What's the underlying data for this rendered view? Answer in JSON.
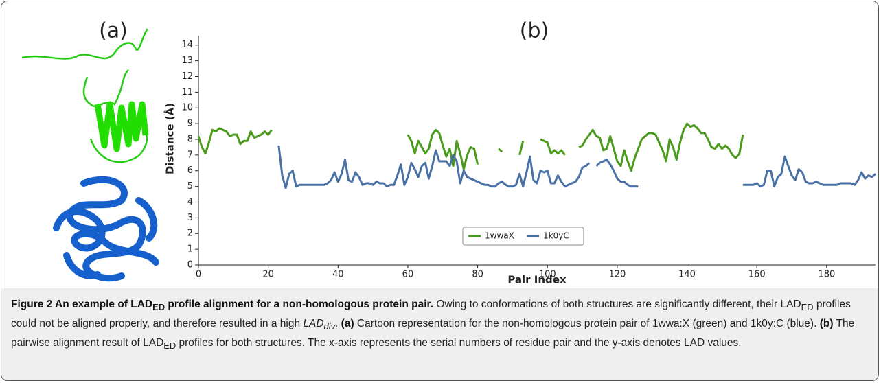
{
  "panel_labels": [
    "(a)",
    "(b)"
  ],
  "chart_data": {
    "type": "line",
    "xlabel": "Pair Index",
    "ylabel": "Distance (Å)",
    "x": [
      0,
      1,
      2,
      3,
      4,
      5,
      6,
      7,
      8,
      9,
      10,
      11,
      12,
      13,
      14,
      15,
      16,
      17,
      18,
      19,
      20,
      21,
      22,
      23,
      24,
      25,
      26,
      27,
      28,
      29,
      30,
      31,
      32,
      33,
      34,
      35,
      36,
      37,
      38,
      39,
      40,
      41,
      42,
      43,
      44,
      45,
      46,
      47,
      48,
      49,
      50,
      51,
      52,
      53,
      54,
      55,
      56,
      57,
      58,
      59,
      60,
      61,
      62,
      63,
      64,
      65,
      66,
      67,
      68,
      69,
      70,
      71,
      72,
      73,
      74,
      75,
      76,
      77,
      78,
      79,
      80,
      81,
      82,
      83,
      84,
      85,
      86,
      87,
      88,
      89,
      90,
      91,
      92,
      93,
      94,
      95,
      96,
      97,
      98,
      99,
      100,
      101,
      102,
      103,
      104,
      105,
      106,
      107,
      108,
      109,
      110,
      111,
      112,
      113,
      114,
      115,
      116,
      117,
      118,
      119,
      120,
      121,
      122,
      123,
      124,
      125,
      126,
      127,
      128,
      129,
      130,
      131,
      132,
      133,
      134,
      135,
      136,
      137,
      138,
      139,
      140,
      141,
      142,
      143,
      144,
      145,
      146,
      147,
      148,
      149,
      150,
      151,
      152,
      153,
      154,
      155,
      156,
      157,
      158,
      159,
      160,
      161,
      162,
      163,
      164,
      165,
      166,
      167,
      168,
      169,
      170,
      171,
      172,
      173,
      174,
      175,
      176,
      177,
      178,
      179,
      180,
      181,
      182,
      183,
      184,
      185,
      186,
      187,
      188,
      189,
      190,
      191,
      192,
      193,
      194
    ],
    "series": [
      {
        "name": "1wwaX",
        "color": "#4a9a1c",
        "values": [
          8.2,
          7.5,
          7.1,
          7.8,
          8.6,
          8.5,
          8.7,
          8.6,
          8.5,
          8.2,
          8.3,
          8.3,
          7.7,
          7.9,
          7.9,
          8.5,
          8.1,
          8.2,
          8.3,
          8.5,
          8.3,
          8.6,
          null,
          null,
          null,
          null,
          null,
          null,
          null,
          null,
          null,
          null,
          null,
          null,
          null,
          null,
          null,
          null,
          null,
          null,
          null,
          null,
          null,
          null,
          null,
          null,
          null,
          null,
          null,
          null,
          null,
          null,
          null,
          null,
          null,
          null,
          null,
          null,
          null,
          null,
          8.3,
          7.9,
          7.1,
          7.9,
          7.5,
          7.1,
          7.4,
          8.3,
          8.6,
          8.4,
          7.6,
          6.9,
          7.4,
          6.3,
          7.9,
          7.1,
          6.1,
          7.0,
          7.5,
          7.4,
          6.4,
          null,
          null,
          null,
          null,
          null,
          7.4,
          7.2,
          null,
          null,
          null,
          null,
          7.0,
          7.9,
          null,
          null,
          null,
          null,
          8.0,
          7.9,
          7.8,
          7.1,
          7.3,
          7.1,
          7.3,
          7.0,
          null,
          null,
          null,
          7.5,
          7.6,
          8.0,
          8.3,
          8.6,
          8.2,
          8.1,
          7.3,
          7.4,
          8.2,
          7.4,
          6.6,
          6.3,
          7.3,
          6.6,
          6.0,
          6.8,
          7.4,
          8.0,
          8.2,
          8.4,
          8.4,
          8.3,
          7.8,
          7.3,
          6.6,
          8.0,
          7.5,
          6.7,
          7.8,
          8.6,
          9.0,
          8.8,
          8.9,
          8.7,
          8.4,
          8.4,
          8.0,
          7.5,
          7.4,
          7.7,
          7.4,
          7.6,
          7.4,
          7.0,
          6.8,
          7.1,
          8.3,
          null,
          null,
          null,
          null,
          null,
          null,
          null,
          null,
          null,
          null,
          null,
          null,
          null,
          null,
          null,
          null,
          null,
          null,
          null,
          null,
          null,
          null,
          null,
          null,
          null,
          null,
          null,
          null,
          null,
          null,
          null,
          null,
          null,
          null,
          null,
          null,
          null,
          null
        ]
      },
      {
        "name": "1k0yC",
        "color": "#4a71a5",
        "values": [
          null,
          null,
          null,
          null,
          null,
          null,
          null,
          null,
          null,
          null,
          null,
          null,
          null,
          null,
          null,
          null,
          null,
          null,
          null,
          null,
          null,
          null,
          null,
          7.6,
          5.7,
          4.9,
          5.8,
          6.0,
          5.0,
          5.1,
          5.1,
          5.1,
          5.1,
          5.1,
          5.1,
          5.1,
          5.1,
          5.2,
          5.4,
          5.9,
          5.3,
          5.8,
          6.7,
          5.4,
          5.3,
          5.9,
          5.6,
          5.1,
          5.2,
          5.2,
          5.1,
          5.3,
          5.2,
          5.2,
          5.0,
          5.1,
          5.1,
          5.7,
          6.4,
          5.1,
          5.6,
          6.5,
          6.1,
          5.6,
          6.3,
          6.5,
          5.5,
          6.3,
          7.3,
          6.6,
          6.6,
          6.6,
          6.3,
          7.0,
          6.6,
          5.2,
          6.0,
          5.6,
          5.5,
          5.4,
          5.3,
          5.2,
          5.1,
          5.1,
          5.0,
          5.0,
          5.2,
          5.3,
          5.1,
          5.0,
          5.0,
          5.1,
          5.8,
          5.0,
          5.9,
          6.9,
          5.4,
          5.2,
          6.0,
          5.9,
          6.0,
          5.2,
          5.2,
          5.7,
          5.3,
          5.0,
          5.1,
          5.2,
          5.3,
          5.6,
          6.2,
          6.3,
          6.5,
          null,
          6.3,
          6.5,
          6.6,
          6.7,
          6.4,
          6.0,
          5.5,
          5.3,
          5.3,
          5.1,
          5.0,
          5.0,
          5.0,
          null,
          null,
          null,
          null,
          null,
          null,
          null,
          null,
          null,
          null,
          null,
          null,
          null,
          null,
          null,
          null,
          null,
          null,
          null,
          null,
          null,
          null,
          null,
          null,
          null,
          null,
          null,
          null,
          null,
          5.1,
          5.1,
          5.1,
          5.1,
          5.2,
          5.0,
          5.1,
          6.0,
          6.0,
          5.0,
          5.6,
          5.8,
          6.9,
          6.3,
          5.7,
          5.4,
          6.1,
          5.9,
          5.3,
          5.2,
          5.2,
          5.3,
          5.2,
          5.1,
          5.1,
          5.1,
          5.1,
          5.1,
          5.2,
          5.2,
          5.2,
          5.2,
          5.1,
          5.4,
          5.9,
          5.5,
          5.7,
          5.6,
          5.8
        ]
      }
    ],
    "xlim": [
      0,
      194
    ],
    "xticks": [
      0,
      20,
      40,
      60,
      80,
      100,
      120,
      140,
      160,
      180
    ],
    "ylim": [
      0,
      14.6
    ],
    "yticks": [
      0,
      1,
      2,
      3,
      4,
      5,
      6,
      7,
      8,
      9,
      10,
      11,
      12,
      13,
      14
    ],
    "grid": false,
    "legend": "lower center"
  },
  "caption": [
    "Figure 2 An example of LAD",
    "ED",
    " profile alignment for a non-homologous protein pair.",
    " Owing to conformations of both structures are significantly different, their LAD",
    "ED",
    " profiles could not be aligned properly, and therefore resulted in a high ",
    "LAD",
    "div",
    ". ",
    "(a)",
    " Cartoon representation for the non-homologous protein pair of 1wwa:X (green) and 1k0y:C (blue). ",
    "(b)",
    " The pairwise alignment result of LAD",
    "ED",
    " profiles for both structures. The x-axis represents the serial numbers of residue pair and the y-axis denotes LAD values."
  ]
}
